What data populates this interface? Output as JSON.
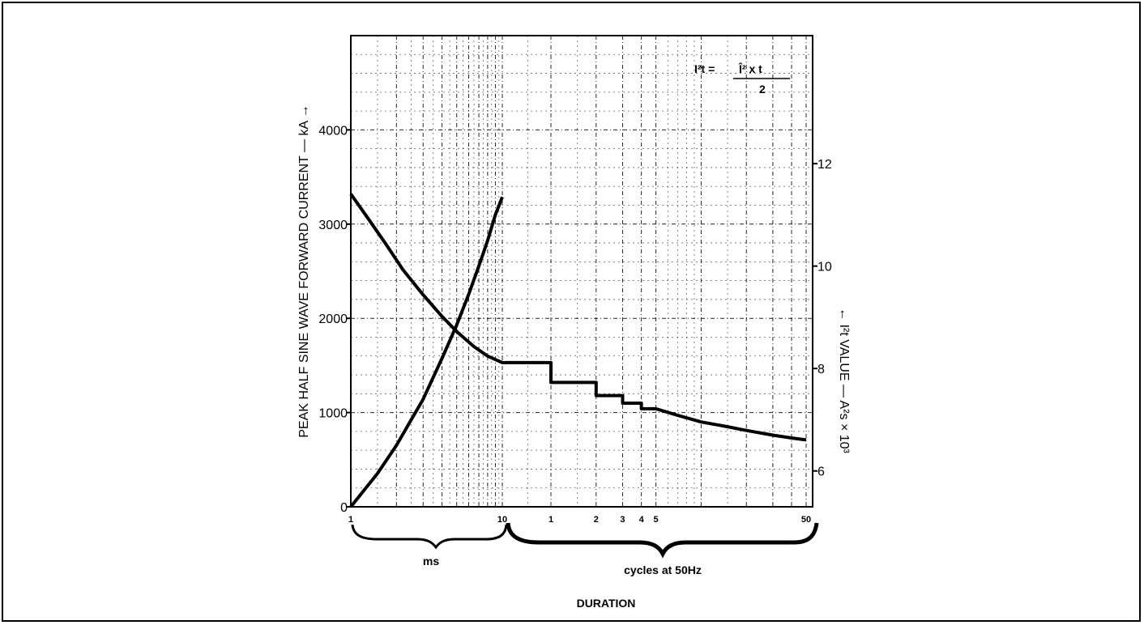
{
  "chart_data": {
    "type": "line",
    "title": "",
    "xlabel": "DURATION",
    "ylabel": "PEAK HALF SINE WAVE FORWARD CURRENT — kA →",
    "y2label": "← I²t VALUE — A²s × 10³",
    "formula": {
      "lhs": "I²t =",
      "numerator": "Î²  x  t",
      "denominator": "2"
    },
    "x_scale": "log (two segments)",
    "x_segments": [
      {
        "unit": "ms",
        "group_label": "ms",
        "tick_labels": [
          "1",
          "10"
        ],
        "range": [
          1,
          10
        ]
      },
      {
        "unit": "cycles at 50Hz",
        "group_label": "cycles at 50Hz",
        "tick_labels": [
          "1",
          "2",
          "3",
          "4",
          "5",
          "50"
        ],
        "range": [
          0.5,
          50
        ]
      }
    ],
    "y_left": {
      "ticks": [
        0,
        1000,
        2000,
        3000,
        4000
      ],
      "range": [
        0,
        5000
      ]
    },
    "y_right": {
      "ticks": [
        6,
        8,
        10,
        12
      ],
      "range": [
        5.3,
        14.5
      ]
    },
    "grid": true,
    "series": [
      {
        "axis": "left",
        "points": [
          {
            "seg": 0,
            "x": 1,
            "y": 3320
          },
          {
            "seg": 0,
            "x": 1.3,
            "y": 3060
          },
          {
            "seg": 0,
            "x": 1.7,
            "y": 2790
          },
          {
            "seg": 0,
            "x": 2.2,
            "y": 2520
          },
          {
            "seg": 0,
            "x": 3,
            "y": 2250
          },
          {
            "seg": 0,
            "x": 4,
            "y": 2020
          },
          {
            "seg": 0,
            "x": 5,
            "y": 1860
          },
          {
            "seg": 0,
            "x": 6.5,
            "y": 1700
          },
          {
            "seg": 0,
            "x": 8,
            "y": 1600
          },
          {
            "seg": 0,
            "x": 10,
            "y": 1530
          },
          {
            "seg": 1,
            "x": 0.55,
            "y": 1530
          },
          {
            "seg": 1,
            "x": 1,
            "y": 1530
          },
          {
            "seg": 1,
            "x": 1,
            "y": 1320
          },
          {
            "seg": 1,
            "x": 2,
            "y": 1320
          },
          {
            "seg": 1,
            "x": 2,
            "y": 1180
          },
          {
            "seg": 1,
            "x": 3,
            "y": 1180
          },
          {
            "seg": 1,
            "x": 3,
            "y": 1100
          },
          {
            "seg": 1,
            "x": 4,
            "y": 1100
          },
          {
            "seg": 1,
            "x": 4,
            "y": 1040
          },
          {
            "seg": 1,
            "x": 5,
            "y": 1040
          },
          {
            "seg": 1,
            "x": 7,
            "y": 970
          },
          {
            "seg": 1,
            "x": 10,
            "y": 900
          },
          {
            "seg": 1,
            "x": 15,
            "y": 850
          },
          {
            "seg": 1,
            "x": 20,
            "y": 810
          },
          {
            "seg": 1,
            "x": 30,
            "y": 760
          },
          {
            "seg": 1,
            "x": 40,
            "y": 730
          },
          {
            "seg": 1,
            "x": 50,
            "y": 710
          }
        ]
      },
      {
        "axis": "right",
        "points": [
          {
            "seg": 0,
            "x": 1,
            "y": 5.3
          },
          {
            "seg": 0,
            "x": 1.5,
            "y": 5.95
          },
          {
            "seg": 0,
            "x": 2,
            "y": 6.5
          },
          {
            "seg": 0,
            "x": 3,
            "y": 7.4
          },
          {
            "seg": 0,
            "x": 4,
            "y": 8.2
          },
          {
            "seg": 0,
            "x": 5,
            "y": 8.85
          },
          {
            "seg": 0,
            "x": 6,
            "y": 9.45
          },
          {
            "seg": 0,
            "x": 7,
            "y": 10.0
          },
          {
            "seg": 0,
            "x": 8,
            "y": 10.5
          },
          {
            "seg": 0,
            "x": 9,
            "y": 11.0
          },
          {
            "seg": 0,
            "x": 10,
            "y": 11.35
          }
        ]
      }
    ]
  }
}
